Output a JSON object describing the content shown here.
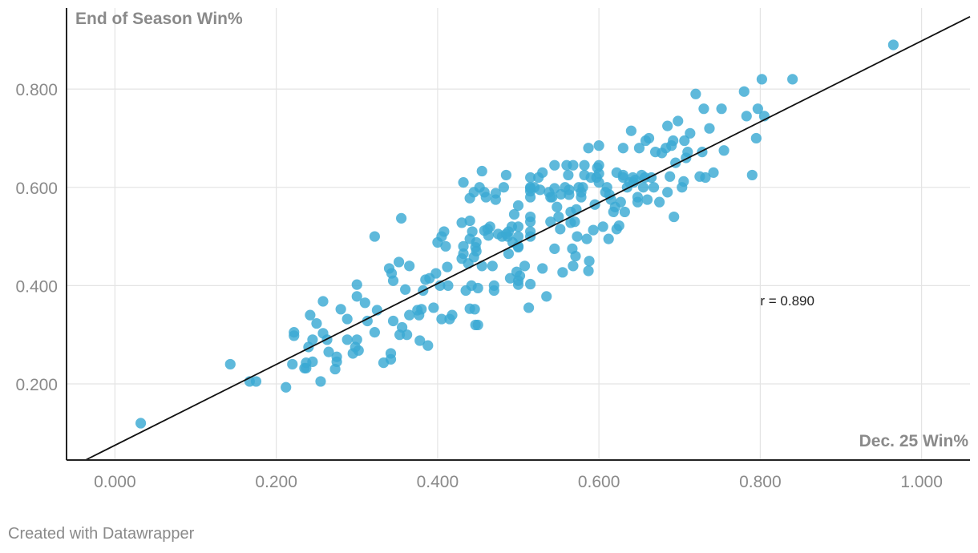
{
  "chart_data": {
    "type": "scatter",
    "xlabel": "Dec. 25 Win%",
    "ylabel": "End of Season Win%",
    "xlim": [
      -0.06,
      1.06
    ],
    "ylim": [
      0.045,
      0.965
    ],
    "x_ticks": [
      "0.000",
      "0.200",
      "0.400",
      "0.600",
      "0.800",
      "1.000"
    ],
    "x_tick_values": [
      0.0,
      0.2,
      0.4,
      0.6,
      0.8,
      1.0
    ],
    "y_ticks": [
      "0.200",
      "0.400",
      "0.600",
      "0.800"
    ],
    "y_tick_values": [
      0.2,
      0.4,
      0.6,
      0.8
    ],
    "grid": true,
    "annotation": "r = 0.890",
    "annotation_at": [
      0.8,
      0.37
    ],
    "trendline": {
      "slope": 0.823,
      "intercept": 0.075,
      "color": "#111111"
    },
    "point_color": "#3aaad3",
    "points": [
      [
        0.032,
        0.12
      ],
      [
        0.143,
        0.24
      ],
      [
        0.167,
        0.205
      ],
      [
        0.175,
        0.205
      ],
      [
        0.212,
        0.193
      ],
      [
        0.22,
        0.24
      ],
      [
        0.222,
        0.305
      ],
      [
        0.222,
        0.298
      ],
      [
        0.235,
        0.232
      ],
      [
        0.237,
        0.232
      ],
      [
        0.237,
        0.243
      ],
      [
        0.24,
        0.275
      ],
      [
        0.242,
        0.34
      ],
      [
        0.245,
        0.245
      ],
      [
        0.245,
        0.29
      ],
      [
        0.25,
        0.323
      ],
      [
        0.255,
        0.205
      ],
      [
        0.258,
        0.368
      ],
      [
        0.258,
        0.303
      ],
      [
        0.263,
        0.29
      ],
      [
        0.265,
        0.265
      ],
      [
        0.273,
        0.23
      ],
      [
        0.275,
        0.245
      ],
      [
        0.275,
        0.255
      ],
      [
        0.28,
        0.352
      ],
      [
        0.288,
        0.332
      ],
      [
        0.288,
        0.29
      ],
      [
        0.295,
        0.262
      ],
      [
        0.298,
        0.275
      ],
      [
        0.3,
        0.29
      ],
      [
        0.3,
        0.402
      ],
      [
        0.3,
        0.378
      ],
      [
        0.302,
        0.268
      ],
      [
        0.31,
        0.365
      ],
      [
        0.313,
        0.328
      ],
      [
        0.322,
        0.5
      ],
      [
        0.322,
        0.305
      ],
      [
        0.325,
        0.35
      ],
      [
        0.333,
        0.243
      ],
      [
        0.34,
        0.435
      ],
      [
        0.342,
        0.262
      ],
      [
        0.342,
        0.25
      ],
      [
        0.343,
        0.425
      ],
      [
        0.345,
        0.41
      ],
      [
        0.345,
        0.328
      ],
      [
        0.352,
        0.448
      ],
      [
        0.353,
        0.3
      ],
      [
        0.355,
        0.537
      ],
      [
        0.356,
        0.315
      ],
      [
        0.36,
        0.392
      ],
      [
        0.362,
        0.3
      ],
      [
        0.365,
        0.34
      ],
      [
        0.365,
        0.44
      ],
      [
        0.375,
        0.35
      ],
      [
        0.377,
        0.34
      ],
      [
        0.378,
        0.288
      ],
      [
        0.38,
        0.352
      ],
      [
        0.382,
        0.39
      ],
      [
        0.385,
        0.412
      ],
      [
        0.388,
        0.278
      ],
      [
        0.39,
        0.415
      ],
      [
        0.395,
        0.355
      ],
      [
        0.398,
        0.425
      ],
      [
        0.4,
        0.488
      ],
      [
        0.403,
        0.4
      ],
      [
        0.405,
        0.332
      ],
      [
        0.405,
        0.5
      ],
      [
        0.408,
        0.51
      ],
      [
        0.41,
        0.48
      ],
      [
        0.412,
        0.438
      ],
      [
        0.413,
        0.4
      ],
      [
        0.415,
        0.332
      ],
      [
        0.418,
        0.34
      ],
      [
        0.43,
        0.528
      ],
      [
        0.43,
        0.455
      ],
      [
        0.432,
        0.48
      ],
      [
        0.432,
        0.465
      ],
      [
        0.432,
        0.61
      ],
      [
        0.435,
        0.39
      ],
      [
        0.438,
        0.445
      ],
      [
        0.44,
        0.495
      ],
      [
        0.44,
        0.578
      ],
      [
        0.44,
        0.353
      ],
      [
        0.44,
        0.532
      ],
      [
        0.442,
        0.4
      ],
      [
        0.443,
        0.51
      ],
      [
        0.445,
        0.458
      ],
      [
        0.445,
        0.59
      ],
      [
        0.446,
        0.352
      ],
      [
        0.447,
        0.478
      ],
      [
        0.447,
        0.32
      ],
      [
        0.448,
        0.488
      ],
      [
        0.448,
        0.47
      ],
      [
        0.45,
        0.32
      ],
      [
        0.45,
        0.395
      ],
      [
        0.452,
        0.6
      ],
      [
        0.455,
        0.44
      ],
      [
        0.455,
        0.633
      ],
      [
        0.458,
        0.59
      ],
      [
        0.458,
        0.512
      ],
      [
        0.46,
        0.58
      ],
      [
        0.462,
        0.515
      ],
      [
        0.463,
        0.502
      ],
      [
        0.465,
        0.52
      ],
      [
        0.468,
        0.44
      ],
      [
        0.47,
        0.39
      ],
      [
        0.47,
        0.4
      ],
      [
        0.472,
        0.588
      ],
      [
        0.472,
        0.575
      ],
      [
        0.475,
        0.505
      ],
      [
        0.48,
        0.5
      ],
      [
        0.482,
        0.6
      ],
      [
        0.485,
        0.625
      ],
      [
        0.485,
        0.505
      ],
      [
        0.487,
        0.5
      ],
      [
        0.488,
        0.51
      ],
      [
        0.488,
        0.465
      ],
      [
        0.49,
        0.415
      ],
      [
        0.492,
        0.52
      ],
      [
        0.493,
        0.488
      ],
      [
        0.495,
        0.545
      ],
      [
        0.498,
        0.428
      ],
      [
        0.5,
        0.563
      ],
      [
        0.5,
        0.52
      ],
      [
        0.5,
        0.5
      ],
      [
        0.5,
        0.48
      ],
      [
        0.5,
        0.478
      ],
      [
        0.5,
        0.41
      ],
      [
        0.5,
        0.402
      ],
      [
        0.502,
        0.42
      ],
      [
        0.508,
        0.44
      ],
      [
        0.513,
        0.355
      ],
      [
        0.515,
        0.5
      ],
      [
        0.515,
        0.58
      ],
      [
        0.515,
        0.592
      ],
      [
        0.515,
        0.6
      ],
      [
        0.515,
        0.403
      ],
      [
        0.515,
        0.54
      ],
      [
        0.515,
        0.53
      ],
      [
        0.515,
        0.51
      ],
      [
        0.515,
        0.598
      ],
      [
        0.515,
        0.62
      ],
      [
        0.52,
        0.6
      ],
      [
        0.525,
        0.62
      ],
      [
        0.527,
        0.595
      ],
      [
        0.53,
        0.435
      ],
      [
        0.53,
        0.63
      ],
      [
        0.535,
        0.378
      ],
      [
        0.538,
        0.59
      ],
      [
        0.54,
        0.58
      ],
      [
        0.54,
        0.53
      ],
      [
        0.542,
        0.58
      ],
      [
        0.545,
        0.598
      ],
      [
        0.545,
        0.645
      ],
      [
        0.545,
        0.475
      ],
      [
        0.548,
        0.56
      ],
      [
        0.55,
        0.54
      ],
      [
        0.552,
        0.515
      ],
      [
        0.553,
        0.586
      ],
      [
        0.555,
        0.427
      ],
      [
        0.558,
        0.6
      ],
      [
        0.56,
        0.645
      ],
      [
        0.562,
        0.625
      ],
      [
        0.563,
        0.595
      ],
      [
        0.563,
        0.585
      ],
      [
        0.565,
        0.528
      ],
      [
        0.565,
        0.55
      ],
      [
        0.567,
        0.475
      ],
      [
        0.568,
        0.645
      ],
      [
        0.568,
        0.44
      ],
      [
        0.57,
        0.53
      ],
      [
        0.571,
        0.46
      ],
      [
        0.572,
        0.555
      ],
      [
        0.573,
        0.5
      ],
      [
        0.575,
        0.6
      ],
      [
        0.578,
        0.58
      ],
      [
        0.578,
        0.59
      ],
      [
        0.58,
        0.6
      ],
      [
        0.582,
        0.645
      ],
      [
        0.582,
        0.625
      ],
      [
        0.585,
        0.495
      ],
      [
        0.587,
        0.68
      ],
      [
        0.587,
        0.43
      ],
      [
        0.588,
        0.45
      ],
      [
        0.59,
        0.62
      ],
      [
        0.593,
        0.513
      ],
      [
        0.595,
        0.565
      ],
      [
        0.597,
        0.62
      ],
      [
        0.598,
        0.64
      ],
      [
        0.6,
        0.628
      ],
      [
        0.6,
        0.61
      ],
      [
        0.6,
        0.685
      ],
      [
        0.6,
        0.645
      ],
      [
        0.605,
        0.52
      ],
      [
        0.608,
        0.59
      ],
      [
        0.61,
        0.6
      ],
      [
        0.612,
        0.495
      ],
      [
        0.613,
        0.585
      ],
      [
        0.615,
        0.575
      ],
      [
        0.618,
        0.55
      ],
      [
        0.62,
        0.56
      ],
      [
        0.622,
        0.63
      ],
      [
        0.622,
        0.515
      ],
      [
        0.625,
        0.522
      ],
      [
        0.627,
        0.57
      ],
      [
        0.63,
        0.68
      ],
      [
        0.63,
        0.62
      ],
      [
        0.63,
        0.625
      ],
      [
        0.632,
        0.55
      ],
      [
        0.635,
        0.6
      ],
      [
        0.638,
        0.61
      ],
      [
        0.64,
        0.715
      ],
      [
        0.642,
        0.62
      ],
      [
        0.643,
        0.61
      ],
      [
        0.645,
        0.615
      ],
      [
        0.648,
        0.57
      ],
      [
        0.648,
        0.58
      ],
      [
        0.65,
        0.68
      ],
      [
        0.653,
        0.625
      ],
      [
        0.655,
        0.6
      ],
      [
        0.657,
        0.62
      ],
      [
        0.658,
        0.695
      ],
      [
        0.66,
        0.575
      ],
      [
        0.662,
        0.7
      ],
      [
        0.665,
        0.62
      ],
      [
        0.668,
        0.6
      ],
      [
        0.67,
        0.672
      ],
      [
        0.675,
        0.57
      ],
      [
        0.678,
        0.67
      ],
      [
        0.683,
        0.68
      ],
      [
        0.685,
        0.725
      ],
      [
        0.685,
        0.59
      ],
      [
        0.688,
        0.622
      ],
      [
        0.69,
        0.685
      ],
      [
        0.692,
        0.695
      ],
      [
        0.693,
        0.54
      ],
      [
        0.695,
        0.65
      ],
      [
        0.698,
        0.735
      ],
      [
        0.703,
        0.6
      ],
      [
        0.705,
        0.612
      ],
      [
        0.706,
        0.695
      ],
      [
        0.708,
        0.66
      ],
      [
        0.71,
        0.672
      ],
      [
        0.713,
        0.71
      ],
      [
        0.72,
        0.79
      ],
      [
        0.725,
        0.622
      ],
      [
        0.728,
        0.672
      ],
      [
        0.73,
        0.76
      ],
      [
        0.732,
        0.62
      ],
      [
        0.737,
        0.72
      ],
      [
        0.742,
        0.63
      ],
      [
        0.752,
        0.76
      ],
      [
        0.755,
        0.675
      ],
      [
        0.78,
        0.795
      ],
      [
        0.783,
        0.745
      ],
      [
        0.79,
        0.625
      ],
      [
        0.795,
        0.7
      ],
      [
        0.797,
        0.76
      ],
      [
        0.802,
        0.82
      ],
      [
        0.805,
        0.745
      ],
      [
        0.84,
        0.82
      ],
      [
        0.965,
        0.89
      ]
    ]
  },
  "footer": {
    "credit": "Created with Datawrapper"
  }
}
